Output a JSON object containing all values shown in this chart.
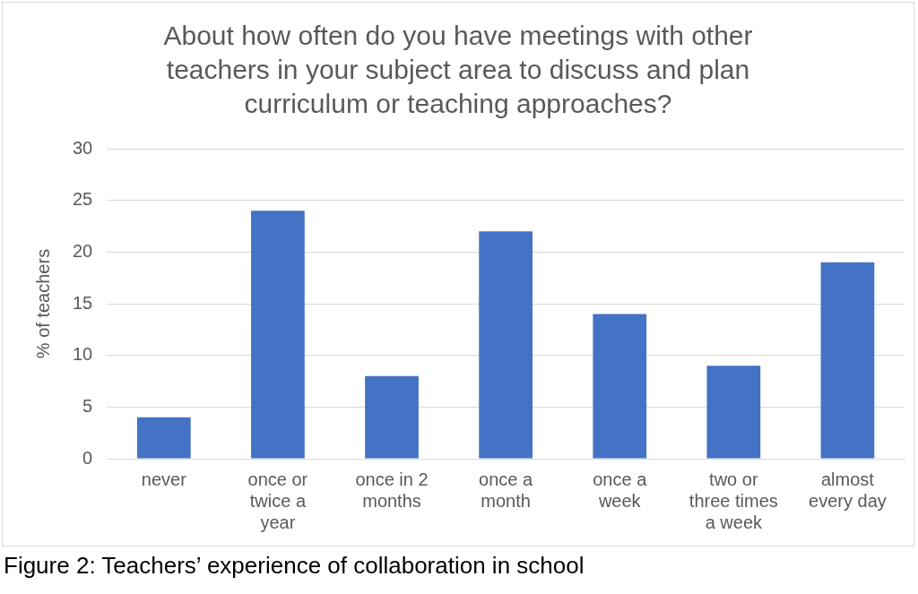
{
  "chart_data": {
    "type": "bar",
    "title": "About how often do you have meetings with other teachers in your subject area to discuss and plan curriculum or teaching approaches?",
    "ylabel": "% of teachers",
    "categories": [
      "never",
      "once or twice a year",
      "once in 2 months",
      "once a month",
      "once a week",
      "two or three times a week",
      "almost every day"
    ],
    "values": [
      4,
      24,
      8,
      22,
      14,
      9,
      19
    ],
    "color": "#4472c4",
    "ylim": [
      0,
      30
    ],
    "yticks": [
      0,
      5,
      10,
      15,
      20,
      25,
      30
    ],
    "grid": "y",
    "legend": false,
    "annotations": [
      "Figure 2: Teachers’ experience of collaboration in school"
    ]
  }
}
